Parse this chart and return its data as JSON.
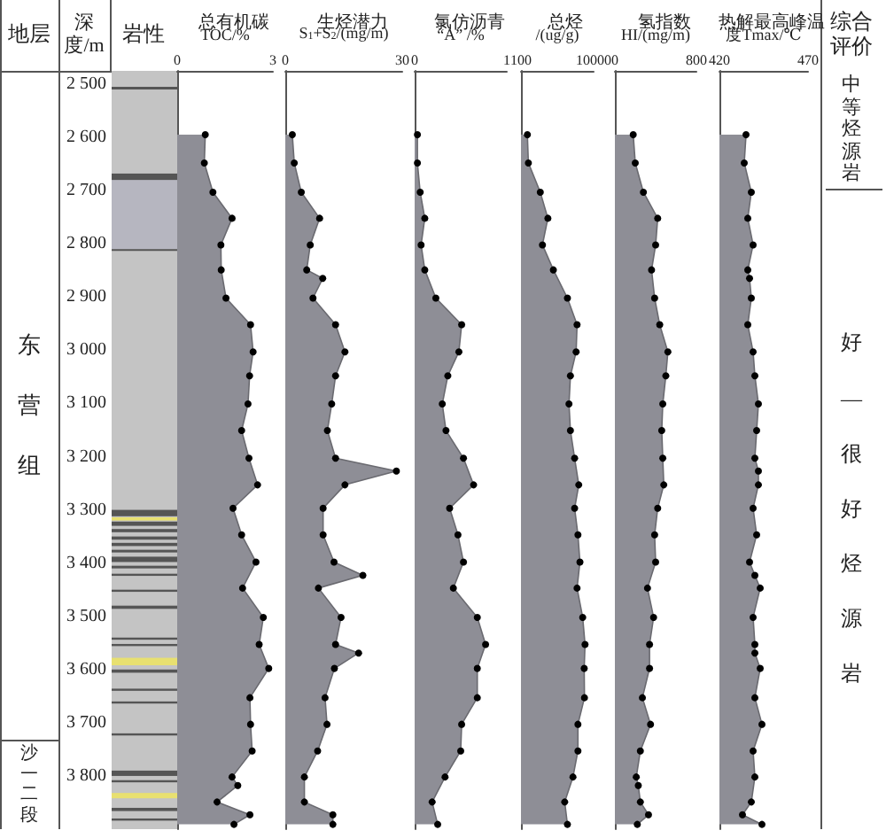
{
  "chart_data": [
    {
      "type": "other",
      "annotations": [
        "地层",
        "深度/m",
        "岩性",
        "综合评价",
        "东营组",
        "沙一二段",
        "中等烃源岩",
        "好—很好烃源岩"
      ]
    },
    {
      "type": "area",
      "orientation": "horizontal",
      "title": "总有机碳",
      "xlabel": "TOC/%",
      "color": "#8e8e96",
      "marker": "circle",
      "xlim": [
        0,
        3
      ],
      "xticks": [
        0,
        3
      ],
      "ylim": [
        3900,
        2475
      ],
      "yticks": [
        {
          "value": 2500,
          "label": "2 500"
        },
        {
          "value": 2600,
          "label": "2 600"
        },
        {
          "value": 2700,
          "label": "2 700"
        },
        {
          "value": 2800,
          "label": "2 800"
        },
        {
          "value": 2900,
          "label": "2 900"
        },
        {
          "value": 3000,
          "label": "3 000"
        },
        {
          "value": 3100,
          "label": "3 100"
        },
        {
          "value": 3200,
          "label": "3 200"
        },
        {
          "value": 3300,
          "label": "3 300"
        },
        {
          "value": 3400,
          "label": "3 400"
        },
        {
          "value": 3500,
          "label": "3 500"
        },
        {
          "value": 3600,
          "label": "3 600"
        },
        {
          "value": 3700,
          "label": "3 700"
        },
        {
          "value": 3800,
          "label": "3 800"
        }
      ],
      "x": [
        2595,
        2648,
        2703,
        2752,
        2802,
        2849,
        2902,
        2952,
        3003,
        3048,
        3101,
        3151,
        3203,
        3253,
        3297,
        3347,
        3398,
        3447,
        3502,
        3553,
        3598,
        3653,
        3703,
        3753,
        3802,
        3818,
        3849,
        3873,
        3891
      ],
      "values": [
        0.88,
        0.85,
        1.12,
        1.72,
        1.37,
        1.38,
        1.53,
        2.3,
        2.38,
        2.27,
        2.22,
        2.02,
        2.25,
        2.52,
        1.75,
        2.02,
        2.47,
        2.05,
        2.7,
        2.57,
        2.87,
        2.28,
        2.3,
        2.35,
        1.72,
        1.9,
        1.25,
        2.28,
        1.78
      ]
    },
    {
      "type": "area",
      "orientation": "horizontal",
      "title": "生烃潜力",
      "xlabel": "S$_{1}$+S$_{2}$/(mg/m)",
      "color": "#8e8e96",
      "marker": "circle",
      "xlim": [
        0,
        30
      ],
      "xticks": [
        0,
        30
      ],
      "ylim": [
        3900,
        2475
      ],
      "tick_labels": "x",
      "x": [
        2595,
        2648,
        2703,
        2752,
        2802,
        2849,
        2865,
        2902,
        2952,
        3003,
        3048,
        3101,
        3151,
        3203,
        3227,
        3253,
        3297,
        3347,
        3398,
        3423,
        3447,
        3502,
        3553,
        3569,
        3598,
        3653,
        3703,
        3753,
        3802,
        3849,
        3873,
        3891
      ],
      "values": [
        1.8,
        2.3,
        4.1,
        8.8,
        6.4,
        5.5,
        9.6,
        7.1,
        12.9,
        15.3,
        12.9,
        11.9,
        10.8,
        12.9,
        28.5,
        15.3,
        9.7,
        9.7,
        12.5,
        19.9,
        8.5,
        14.3,
        12.9,
        18.8,
        12.6,
        10.2,
        10.7,
        8.3,
        4.9,
        4.9,
        12.2,
        12.2
      ]
    },
    {
      "type": "area",
      "orientation": "horizontal",
      "title": "氯仿沥青",
      "xlabel": "“A” /%",
      "color": "#8e8e96",
      "marker": "circle",
      "xlim": [
        0,
        1
      ],
      "xticks": [
        0,
        1
      ],
      "ylim": [
        3900,
        2475
      ],
      "tick_labels": "x",
      "x": [
        2595,
        2648,
        2703,
        2752,
        2802,
        2849,
        2902,
        2952,
        3003,
        3048,
        3101,
        3151,
        3203,
        3253,
        3297,
        3347,
        3398,
        3447,
        3502,
        3553,
        3598,
        3653,
        3703,
        3753,
        3802,
        3849,
        3891
      ],
      "values": [
        0.03,
        0.03,
        0.06,
        0.11,
        0.07,
        0.11,
        0.23,
        0.51,
        0.48,
        0.36,
        0.3,
        0.34,
        0.53,
        0.64,
        0.38,
        0.47,
        0.53,
        0.42,
        0.68,
        0.77,
        0.68,
        0.68,
        0.51,
        0.5,
        0.33,
        0.19,
        0.25
      ]
    },
    {
      "type": "area",
      "orientation": "horizontal",
      "title": "总烃",
      "xlabel": "/(ug/g)",
      "color": "#8e8e96",
      "marker": "circle",
      "log": "x",
      "xlim": [
        100,
        10000
      ],
      "xticks": [
        100,
        10000
      ],
      "ylim": [
        3900,
        2475
      ],
      "tick_labels": "x",
      "x": [
        2595,
        2648,
        2703,
        2752,
        2802,
        2849,
        2902,
        2952,
        3003,
        3048,
        3101,
        3151,
        3203,
        3253,
        3297,
        3347,
        3398,
        3447,
        3502,
        3553,
        3598,
        3653,
        3703,
        3753,
        3802,
        3849,
        3891
      ],
      "values": [
        150,
        160,
        340,
        550,
        390,
        780,
        1900,
        3500,
        3300,
        2300,
        2100,
        2300,
        3000,
        3900,
        3000,
        3700,
        4200,
        3500,
        5000,
        5800,
        5500,
        5600,
        3700,
        3700,
        2700,
        1600,
        1900
      ]
    },
    {
      "type": "area",
      "orientation": "horizontal",
      "title": "氢指数",
      "xlabel": "HI/(mg/m)",
      "color": "#8e8e96",
      "marker": "circle",
      "xlim": [
        0,
        800
      ],
      "xticks": [
        0,
        800
      ],
      "ylim": [
        3900,
        2475
      ],
      "tick_labels": "x",
      "x": [
        2595,
        2648,
        2703,
        2752,
        2802,
        2849,
        2902,
        2952,
        3003,
        3048,
        3101,
        3151,
        3203,
        3253,
        3297,
        3347,
        3398,
        3447,
        3502,
        3553,
        3598,
        3653,
        3703,
        3753,
        3802,
        3818,
        3849,
        3873,
        3891
      ],
      "values": [
        180,
        200,
        280,
        420,
        400,
        360,
        390,
        440,
        520,
        500,
        470,
        460,
        470,
        480,
        420,
        390,
        400,
        320,
        380,
        340,
        340,
        270,
        350,
        250,
        210,
        230,
        250,
        330,
        220
      ]
    },
    {
      "type": "area",
      "orientation": "horizontal",
      "title": "热解最高峰温",
      "xlabel": "度Tmax/℃",
      "color": "#8e8e96",
      "marker": "circle",
      "xlim": [
        420,
        470
      ],
      "xticks": [
        420,
        470
      ],
      "ylim": [
        3900,
        2475
      ],
      "tick_labels": "x",
      "x": [
        2595,
        2648,
        2703,
        2752,
        2802,
        2849,
        2865,
        2902,
        2952,
        3003,
        3048,
        3101,
        3151,
        3203,
        3227,
        3253,
        3297,
        3347,
        3398,
        3423,
        3447,
        3502,
        3553,
        3569,
        3598,
        3653,
        3703,
        3753,
        3802,
        3849,
        3873,
        3891
      ],
      "values": [
        435,
        434,
        438,
        436,
        439,
        436,
        437,
        438,
        436,
        439,
        440,
        442,
        441,
        440,
        442,
        442,
        439,
        441,
        437,
        440,
        443,
        439,
        440,
        440,
        443,
        440,
        444,
        439,
        440,
        438,
        433,
        444
      ]
    }
  ]
}
